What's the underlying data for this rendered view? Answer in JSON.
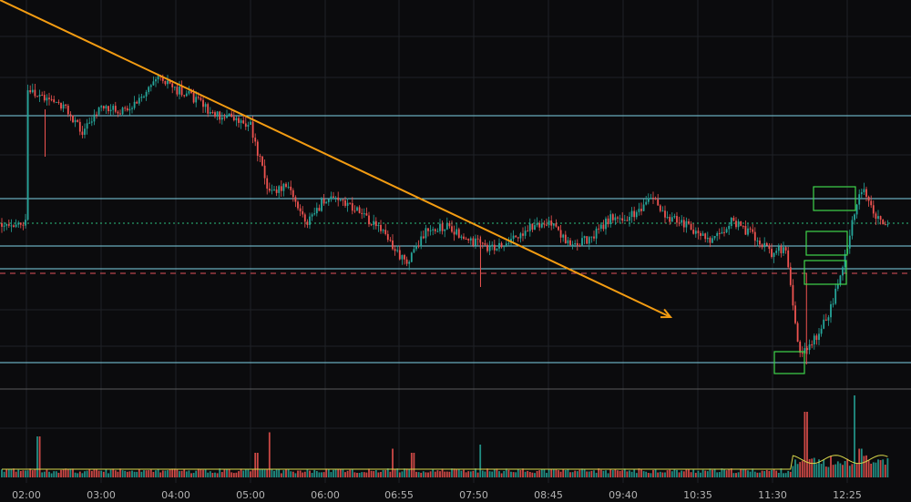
{
  "theme": {
    "background": "#0b0b0d",
    "grid": "#1f2126",
    "candle_up": "#26a69a",
    "candle_down": "#ef5350",
    "hline": "#7fd3e6",
    "dashed_red": "#e0505a",
    "dotted_green": "#2ec27e",
    "trendline": "#f39c12",
    "box": "#3fd44a",
    "volume_ma": "#d7d74a",
    "pane_separator": "#5a5a5a",
    "axis_text": "#b3b3b3"
  },
  "chart_data": {
    "type": "candlestick",
    "title": "",
    "x_axis": {
      "ticks": [
        "02:00",
        "03:00",
        "04:00",
        "05:00",
        "06:00",
        "06:55",
        "07:50",
        "08:45",
        "09:40",
        "10:35",
        "11:30",
        "12:25"
      ]
    },
    "price_path": [
      [
        "02:00",
        102
      ],
      [
        "02:15",
        106
      ],
      [
        "02:30",
        116
      ],
      [
        "02:45",
        145
      ],
      [
        "03:00",
        116
      ],
      [
        "03:15",
        122
      ],
      [
        "03:30",
        112
      ],
      [
        "03:45",
        80
      ],
      [
        "04:00",
        98
      ],
      [
        "04:15",
        108
      ],
      [
        "04:30",
        126
      ],
      [
        "04:45",
        128
      ],
      [
        "05:00",
        138
      ],
      [
        "05:15",
        212
      ],
      [
        "05:30",
        205
      ],
      [
        "05:45",
        245
      ],
      [
        "06:00",
        218
      ],
      [
        "06:15",
        222
      ],
      [
        "06:30",
        238
      ],
      [
        "06:45",
        258
      ],
      [
        "07:00",
        290
      ],
      [
        "07:15",
        252
      ],
      [
        "07:30",
        248
      ],
      [
        "07:45",
        262
      ],
      [
        "08:00",
        272
      ],
      [
        "08:15",
        268
      ],
      [
        "08:30",
        250
      ],
      [
        "08:45",
        243
      ],
      [
        "09:00",
        268
      ],
      [
        "09:15",
        262
      ],
      [
        "09:30",
        240
      ],
      [
        "09:45",
        238
      ],
      [
        "10:00",
        218
      ],
      [
        "10:15",
        240
      ],
      [
        "10:30",
        250
      ],
      [
        "10:45",
        265
      ],
      [
        "11:00",
        242
      ],
      [
        "11:15",
        258
      ],
      [
        "11:30",
        280
      ],
      [
        "11:40",
        270
      ],
      [
        "11:50",
        392
      ],
      [
        "12:05",
        365
      ],
      [
        "12:15",
        330
      ],
      [
        "12:25",
        270
      ],
      [
        "12:35",
        205
      ],
      [
        "12:45",
        235
      ],
      [
        "12:55",
        245
      ]
    ],
    "horizontal_levels": [
      {
        "style": "solid",
        "color": "#7fd3e6",
        "level": 1
      },
      {
        "style": "solid",
        "color": "#7fd3e6",
        "level": 2
      },
      {
        "style": "dotted",
        "color": "#2ec27e",
        "level": 3
      },
      {
        "style": "solid",
        "color": "#7fd3e6",
        "level": 4
      },
      {
        "style": "solid",
        "color": "#7fd3e6",
        "level": 5
      },
      {
        "style": "dashed",
        "color": "#e0505a",
        "level": 6
      },
      {
        "style": "solid",
        "color": "#7fd3e6",
        "level": 7
      }
    ],
    "trendline": {
      "from": "02:00",
      "to": "10:35",
      "color": "#f39c12",
      "arrow": true
    },
    "highlight_boxes": [
      "11:55",
      "12:20",
      "12:20",
      "12:30"
    ],
    "volume": {
      "base": "low",
      "spikes": [
        {
          "x": "02:10",
          "v": 0.5
        },
        {
          "x": "05:15",
          "v": 0.55
        },
        {
          "x": "05:05",
          "v": 0.3
        },
        {
          "x": "06:50",
          "v": 0.35
        },
        {
          "x": "07:05",
          "v": 0.3
        },
        {
          "x": "07:55",
          "v": 0.4
        },
        {
          "x": "11:55",
          "v": 0.8
        },
        {
          "x": "12:30",
          "v": 1.0
        },
        {
          "x": "12:35",
          "v": 0.35
        }
      ]
    },
    "grid": true,
    "legend": "none"
  }
}
